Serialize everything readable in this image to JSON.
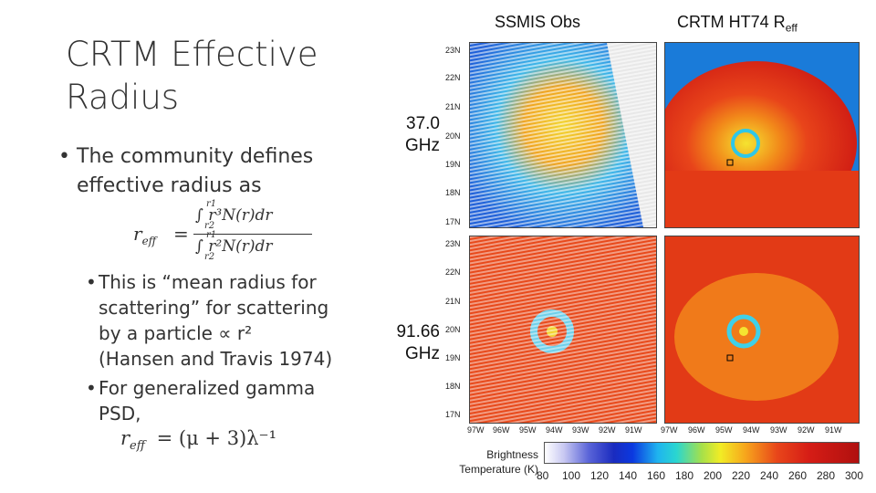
{
  "slide": {
    "title": "CRTM Effective Radius",
    "bullet1": "The community defines effective radius as",
    "equation": {
      "lhs": "r",
      "lhs_sub": "eff",
      "equals": "=",
      "num": "∫ r³N(r)dr",
      "den": "∫ r²N(r)dr",
      "lim_upper": "r1",
      "lim_lower": "r2"
    },
    "sub1_lines": [
      "This is “mean radius for",
      "scattering” for scattering",
      "by a particle ∝ r²",
      "(Hansen and Travis 1974)"
    ],
    "sub2_lines": [
      "For generalized gamma",
      "PSD,"
    ],
    "sub2_formula": "r_eff = (μ + 3)λ⁻¹",
    "sub2_formula_lhs": "r",
    "sub2_formula_sub": "eff",
    "sub2_formula_rhs": "= (μ + 3)λ⁻¹"
  },
  "figure": {
    "col_obs": "SSMIS Obs",
    "col_model_prefix": "CRTM HT74 R",
    "col_model_sub": "eff",
    "row1_label_a": "37.0",
    "row1_label_b": "GHz",
    "row2_label_a": "91.66",
    "row2_label_b": "GHz",
    "lat_ticks": [
      "23N",
      "22N",
      "21N",
      "20N",
      "19N",
      "18N",
      "17N"
    ],
    "lon_ticks": [
      "97W",
      "96W",
      "95W",
      "94W",
      "93W",
      "92W",
      "91W"
    ],
    "colorbar_label_1": "Brightness",
    "colorbar_label_2": "Temperature (K)",
    "colorbar_ticks": [
      "80",
      "100",
      "120",
      "140",
      "160",
      "180",
      "200",
      "220",
      "240",
      "260",
      "280",
      "300"
    ]
  }
}
